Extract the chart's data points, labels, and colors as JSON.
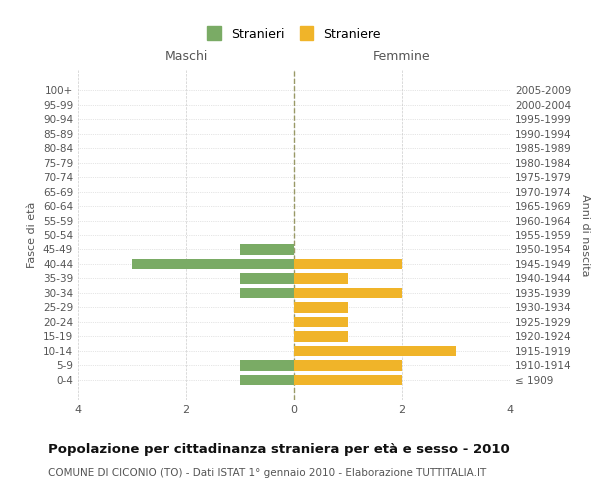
{
  "age_groups": [
    "100+",
    "95-99",
    "90-94",
    "85-89",
    "80-84",
    "75-79",
    "70-74",
    "65-69",
    "60-64",
    "55-59",
    "50-54",
    "45-49",
    "40-44",
    "35-39",
    "30-34",
    "25-29",
    "20-24",
    "15-19",
    "10-14",
    "5-9",
    "0-4"
  ],
  "birth_years": [
    "≤ 1909",
    "1910-1914",
    "1915-1919",
    "1920-1924",
    "1925-1929",
    "1930-1934",
    "1935-1939",
    "1940-1944",
    "1945-1949",
    "1950-1954",
    "1955-1959",
    "1960-1964",
    "1965-1969",
    "1970-1974",
    "1975-1979",
    "1980-1984",
    "1985-1989",
    "1990-1994",
    "1995-1999",
    "2000-2004",
    "2005-2009"
  ],
  "maschi": [
    0,
    0,
    0,
    0,
    0,
    0,
    0,
    0,
    0,
    0,
    0,
    1,
    3,
    1,
    1,
    0,
    0,
    0,
    0,
    1,
    1
  ],
  "femmine": [
    0,
    0,
    0,
    0,
    0,
    0,
    0,
    0,
    0,
    0,
    0,
    0,
    2,
    1,
    2,
    1,
    1,
    1,
    3,
    2,
    2
  ],
  "color_maschi": "#7aab65",
  "color_femmine": "#f0b429",
  "title": "Popolazione per cittadinanza straniera per età e sesso - 2010",
  "subtitle": "COMUNE DI CICONIO (TO) - Dati ISTAT 1° gennaio 2010 - Elaborazione TUTTITALIA.IT",
  "xlabel_left": "Maschi",
  "xlabel_right": "Femmine",
  "ylabel_left": "Fasce di età",
  "ylabel_right": "Anni di nascita",
  "legend_stranieri": "Stranieri",
  "legend_straniere": "Straniere",
  "xlim": 4,
  "background_color": "#ffffff",
  "grid_color": "#cccccc",
  "bar_height": 0.7
}
